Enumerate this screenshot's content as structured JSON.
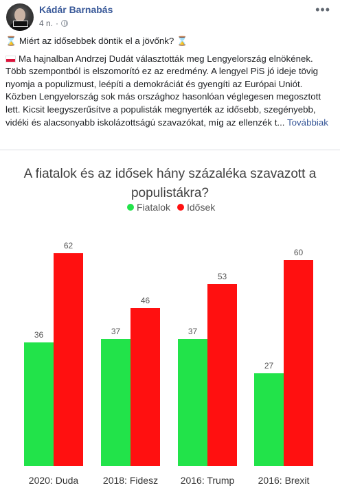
{
  "post": {
    "author": "Kádár Barnabás",
    "time": "4 n.",
    "headline": "Miért az idősebbek döntik el a jövőnk?",
    "body": "Ma hajnalban Andrzej Dudát választották meg Lengyelország elnökének. Több szempontból is elszomorító ez az eredmény. A lengyel PiS jó ideje tövig nyomja a populizmust, leépíti a demokráciát és gyengíti az Európai Uniót. Közben Lengyelország sok más országhoz hasonlóan véglegesen megosztott lett. Kicsit leegyszerűsítve a populisták megnyerték az idősebb, szegényebb, vidéki és alacsonyabb iskolázottságú szavazókat, míg az ellenzék t...",
    "see_more": "Továbbiak"
  },
  "chart_data": {
    "type": "bar",
    "title": "A fiatalok és az idősek hány százaléka szavazott a populistákra?",
    "title_lines": [
      "A fiatalok és az idősek hány százaléka szavazott a",
      "populistákra?"
    ],
    "categories": [
      "2020: Duda",
      "2018: Fidesz",
      "2016: Trump",
      "2016: Brexit"
    ],
    "series": [
      {
        "name": "Fiatalok",
        "values": [
          36,
          37,
          37,
          27
        ],
        "color": "#22e34a"
      },
      {
        "name": "Idősek",
        "values": [
          62,
          46,
          53,
          60
        ],
        "color": "#ff1010"
      }
    ],
    "ylim": [
      0,
      70
    ],
    "grid": false,
    "legend_position": "top"
  }
}
